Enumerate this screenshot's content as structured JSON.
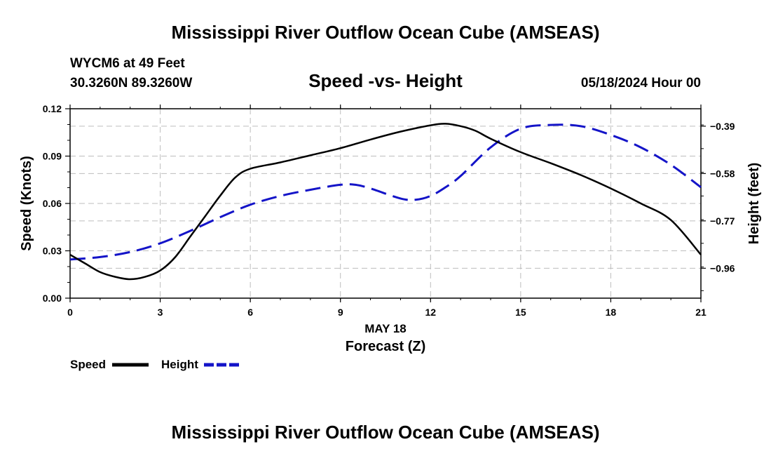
{
  "header": {
    "title": "Mississippi River Outflow Ocean Cube (AMSEAS)",
    "station": "WYCM6 at 49 Feet",
    "coords": "30.3260N  89.3260W",
    "subtitle": "Speed -vs- Height",
    "datetime": "05/18/2024 Hour 00"
  },
  "footer": {
    "title": "Mississippi River Outflow Ocean Cube (AMSEAS)"
  },
  "colors": {
    "speed": "#000000",
    "height": "#1414c8",
    "grid": "#bdbdbd"
  },
  "chart_data": {
    "type": "line",
    "title": "Speed -vs- Height",
    "xlabel": "Forecast (Z)",
    "xdate_label": "MAY 18",
    "ylabel_left": "Speed (Knots)",
    "ylabel_right": "Height (feet)",
    "xlim": [
      0,
      21
    ],
    "ylim_left": [
      0,
      0.12
    ],
    "ylim_right": [
      -1.08,
      -0.32
    ],
    "x_ticks": [
      0,
      3,
      6,
      9,
      12,
      15,
      18,
      21
    ],
    "x_tick_labels": [
      "0",
      "3",
      "6",
      "9",
      "12",
      "15",
      "18",
      "21"
    ],
    "y_left_ticks": [
      0,
      0.03,
      0.06,
      0.09,
      0.12
    ],
    "y_left_tick_labels": [
      "0.00",
      "0.03",
      "0.06",
      "0.09",
      "0.12"
    ],
    "y_right_ticks": [
      -0.96,
      -0.77,
      -0.58,
      -0.39
    ],
    "y_right_tick_labels": [
      "−0.96",
      "−0.77",
      "−0.58",
      "−0.39"
    ],
    "grid": true,
    "legend_position": "bottom-left",
    "series": [
      {
        "name": "Speed",
        "axis": "left",
        "style": "solid",
        "x": [
          0,
          0.5,
          1,
          1.5,
          2,
          2.5,
          3,
          3.5,
          4,
          4.5,
          5,
          5.5,
          6,
          7,
          8,
          9,
          10,
          11,
          12,
          12.5,
          13,
          13.5,
          14,
          15,
          16,
          17,
          18,
          19,
          20,
          21
        ],
        "values": [
          0.0275,
          0.022,
          0.0165,
          0.0135,
          0.012,
          0.0135,
          0.0175,
          0.026,
          0.039,
          0.052,
          0.065,
          0.0765,
          0.082,
          0.086,
          0.0905,
          0.095,
          0.1005,
          0.1055,
          0.1095,
          0.1105,
          0.109,
          0.106,
          0.101,
          0.0925,
          0.0855,
          0.078,
          0.0695,
          0.06,
          0.0495,
          0.0275
        ]
      },
      {
        "name": "Height",
        "axis": "right",
        "style": "dashed",
        "x": [
          0,
          1,
          2,
          3,
          4,
          5,
          6,
          7,
          8,
          9,
          9.5,
          10,
          11,
          11.5,
          12,
          12.5,
          13,
          14,
          15,
          16,
          17,
          18,
          19,
          20,
          21
        ],
        "values": [
          -0.925,
          -0.915,
          -0.895,
          -0.86,
          -0.81,
          -0.755,
          -0.705,
          -0.67,
          -0.645,
          -0.625,
          -0.625,
          -0.64,
          -0.68,
          -0.685,
          -0.67,
          -0.635,
          -0.59,
          -0.475,
          -0.4,
          -0.385,
          -0.39,
          -0.425,
          -0.475,
          -0.545,
          -0.635
        ]
      }
    ]
  }
}
